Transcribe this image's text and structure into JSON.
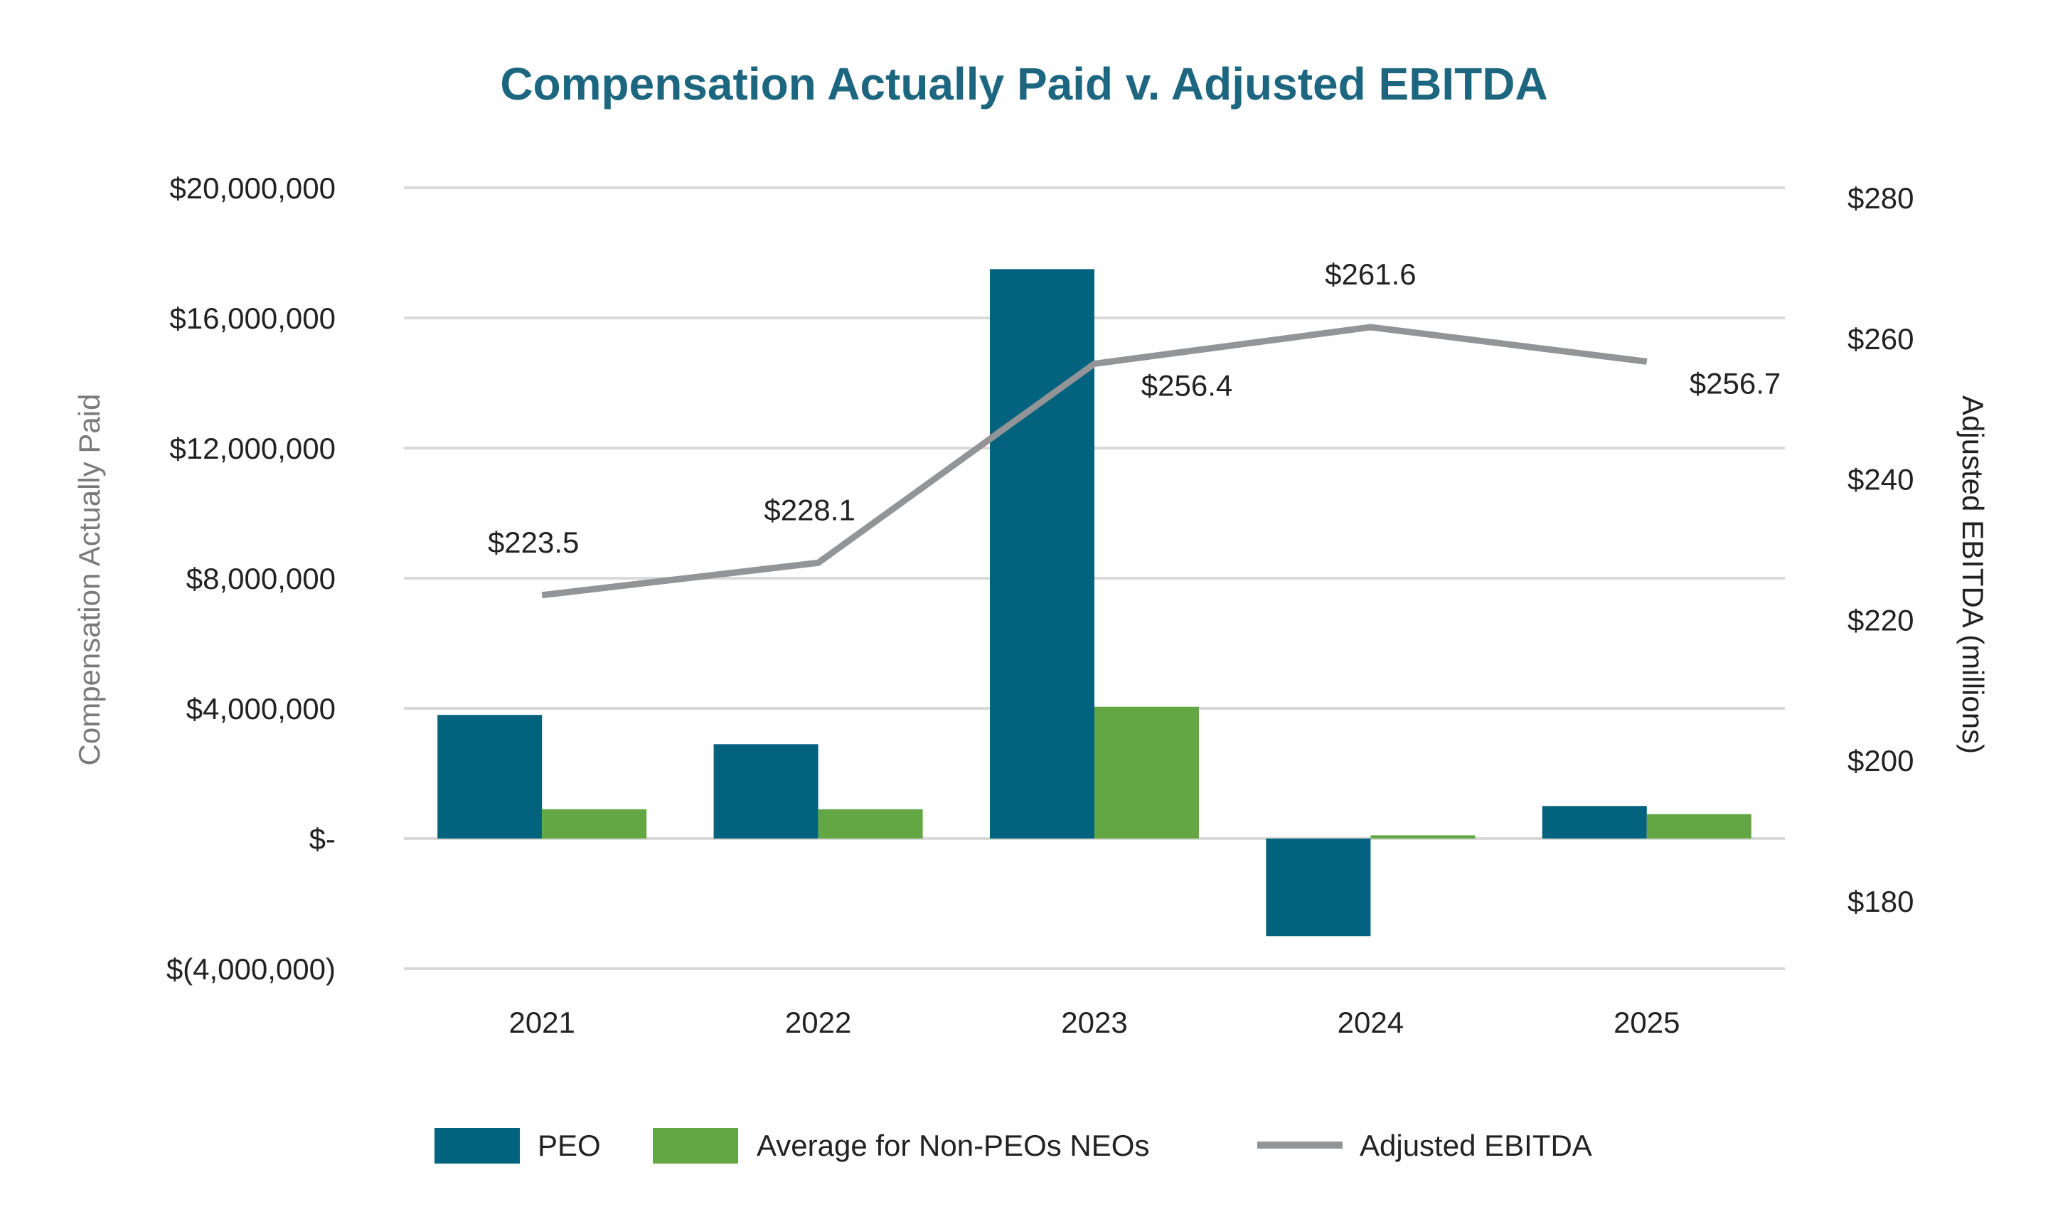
{
  "chart_data": {
    "type": "bar",
    "title": "Compensation Actually Paid v. Adjusted EBITDA",
    "categories": [
      "2021",
      "2022",
      "2023",
      "2024",
      "2025"
    ],
    "ylabel": "Compensation Actually Paid",
    "y2label": "Adjusted EBITDA (millions)",
    "ylim": [
      -4000000,
      20000000
    ],
    "y2lim": [
      170,
      280
    ],
    "yticks": [
      -4000000,
      0,
      4000000,
      8000000,
      12000000,
      16000000,
      20000000
    ],
    "ytick_labels": [
      "$(4,000,000)",
      "$-",
      "$4,000,000",
      "$8,000,000",
      "$12,000,000",
      "$16,000,000",
      "$20,000,000"
    ],
    "y2ticks": [
      180,
      200,
      220,
      240,
      260,
      280
    ],
    "y2tick_labels": [
      "$180",
      "$200",
      "$220",
      "$240",
      "$260",
      "$280"
    ],
    "grid": true,
    "legend_position": "bottom",
    "series": [
      {
        "name": "PEO",
        "type": "bar",
        "axis": "left",
        "color": "#03627e",
        "values": [
          3800000,
          2900000,
          17500000,
          -3000000,
          1000000
        ]
      },
      {
        "name": "Average for Non-PEOs NEOs",
        "type": "bar",
        "axis": "left",
        "color": "#62a744",
        "values": [
          900000,
          900000,
          4050000,
          100000,
          750000
        ]
      },
      {
        "name": "Adjusted EBITDA",
        "type": "line",
        "axis": "right",
        "color": "#929497",
        "values": [
          223.5,
          228.1,
          256.4,
          261.6,
          256.7
        ],
        "labels": [
          "$223.5",
          "$228.1",
          "$256.4",
          "$261.6",
          "$256.7"
        ]
      }
    ]
  }
}
